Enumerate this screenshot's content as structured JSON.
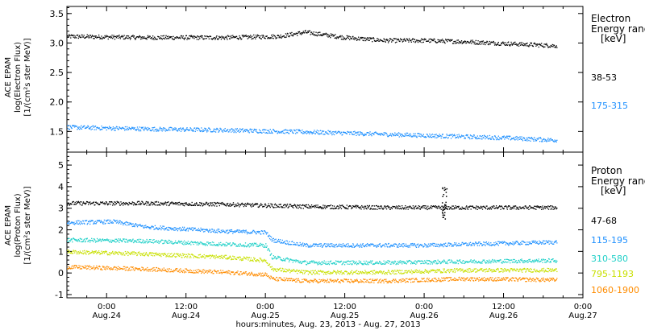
{
  "xaxis": {
    "ticks": [
      {
        "time": "0:00",
        "date": "Aug.24"
      },
      {
        "time": "12:00",
        "date": "Aug.24"
      },
      {
        "time": "0:00",
        "date": "Aug.25"
      },
      {
        "time": "12:00",
        "date": "Aug.25"
      },
      {
        "time": "0:00",
        "date": "Aug.26"
      },
      {
        "time": "12:00",
        "date": "Aug.26"
      },
      {
        "time": "0:00",
        "date": "Aug.27"
      }
    ],
    "label": "hours:minutes, Aug. 23, 2013 - Aug. 27, 2013"
  },
  "chart_data": [
    {
      "type": "scatter",
      "ylabel_lines": [
        "ACE EPAM",
        "log(Electron Flux)",
        "[1/(cm²s ster MeV)]"
      ],
      "legend_title_lines": [
        "Electron",
        "Energy ranges",
        "[keV]"
      ],
      "ylim": [
        1.15,
        3.62
      ],
      "yticks": [
        1.5,
        2.0,
        2.5,
        3.0,
        3.5
      ],
      "xlim": [
        "2013-08-23 18:00",
        "2013-08-27 00:00"
      ],
      "series": [
        {
          "name": "38-53",
          "color": "#000000",
          "anchors": [
            [
              "2013-08-23 18:00",
              3.12
            ],
            [
              "2013-08-24 06:00",
              3.1
            ],
            [
              "2013-08-24 18:00",
              3.1
            ],
            [
              "2013-08-25 02:00",
              3.12
            ],
            [
              "2013-08-25 06:00",
              3.19
            ],
            [
              "2013-08-25 12:00",
              3.1
            ],
            [
              "2013-08-25 18:00",
              3.05
            ],
            [
              "2013-08-26 00:00",
              3.05
            ],
            [
              "2013-08-26 06:00",
              3.03
            ],
            [
              "2013-08-26 12:00",
              3.0
            ],
            [
              "2013-08-26 20:00",
              2.96
            ]
          ]
        },
        {
          "name": "175-315",
          "color": "#1e90ff",
          "anchors": [
            [
              "2013-08-23 18:00",
              1.58
            ],
            [
              "2013-08-24 06:00",
              1.55
            ],
            [
              "2013-08-24 18:00",
              1.53
            ],
            [
              "2013-08-25 06:00",
              1.5
            ],
            [
              "2013-08-25 18:00",
              1.46
            ],
            [
              "2013-08-26 06:00",
              1.42
            ],
            [
              "2013-08-26 12:00",
              1.4
            ],
            [
              "2013-08-26 20:00",
              1.36
            ]
          ]
        }
      ]
    },
    {
      "type": "scatter",
      "ylabel_lines": [
        "ACE EPAM",
        "log(Proton Flux)",
        "[1/(cm²s ster MeV)]"
      ],
      "legend_title_lines": [
        "Proton",
        "Energy ranges",
        "[keV]"
      ],
      "ylim": [
        -1.15,
        5.6
      ],
      "yticks": [
        -1,
        0,
        1,
        2,
        3,
        4,
        5
      ],
      "xlim": [
        "2013-08-23 18:00",
        "2013-08-27 00:00"
      ],
      "series": [
        {
          "name": "47-68",
          "color": "#000000",
          "anchors": [
            [
              "2013-08-23 18:00",
              3.25
            ],
            [
              "2013-08-24 06:00",
              3.25
            ],
            [
              "2013-08-24 18:00",
              3.2
            ],
            [
              "2013-08-25 06:00",
              3.1
            ],
            [
              "2013-08-25 18:00",
              3.05
            ],
            [
              "2013-08-26 00:00",
              3.05
            ],
            [
              "2013-08-26 06:00",
              3.05
            ],
            [
              "2013-08-26 20:00",
              3.05
            ]
          ]
        },
        {
          "name": "115-195",
          "color": "#1e90ff",
          "anchors": [
            [
              "2013-08-23 18:00",
              2.35
            ],
            [
              "2013-08-24 01:00",
              2.4
            ],
            [
              "2013-08-24 06:00",
              2.15
            ],
            [
              "2013-08-24 18:00",
              1.95
            ],
            [
              "2013-08-25 00:00",
              1.9
            ],
            [
              "2013-08-25 01:00",
              1.55
            ],
            [
              "2013-08-25 06:00",
              1.3
            ],
            [
              "2013-08-25 18:00",
              1.3
            ],
            [
              "2013-08-26 00:00",
              1.3
            ],
            [
              "2013-08-26 06:00",
              1.35
            ],
            [
              "2013-08-26 20:00",
              1.45
            ]
          ]
        },
        {
          "name": "310-580",
          "color": "#20d0c8",
          "anchors": [
            [
              "2013-08-23 18:00",
              1.55
            ],
            [
              "2013-08-24 06:00",
              1.5
            ],
            [
              "2013-08-24 18:00",
              1.35
            ],
            [
              "2013-08-25 00:00",
              1.3
            ],
            [
              "2013-08-25 01:00",
              0.75
            ],
            [
              "2013-08-25 06:00",
              0.5
            ],
            [
              "2013-08-25 18:00",
              0.5
            ],
            [
              "2013-08-26 06:00",
              0.55
            ],
            [
              "2013-08-26 20:00",
              0.6
            ]
          ]
        },
        {
          "name": "795-1193",
          "color": "#c8e000",
          "anchors": [
            [
              "2013-08-23 18:00",
              1.0
            ],
            [
              "2013-08-24 06:00",
              0.9
            ],
            [
              "2013-08-24 18:00",
              0.75
            ],
            [
              "2013-08-25 00:00",
              0.6
            ],
            [
              "2013-08-25 01:00",
              0.2
            ],
            [
              "2013-08-25 06:00",
              0.05
            ],
            [
              "2013-08-25 18:00",
              0.05
            ],
            [
              "2013-08-26 06:00",
              0.15
            ],
            [
              "2013-08-26 20:00",
              0.15
            ]
          ]
        },
        {
          "name": "1060-1900",
          "color": "#ff8c00",
          "anchors": [
            [
              "2013-08-23 18:00",
              0.3
            ],
            [
              "2013-08-24 06:00",
              0.2
            ],
            [
              "2013-08-24 18:00",
              0.05
            ],
            [
              "2013-08-25 00:00",
              -0.05
            ],
            [
              "2013-08-25 01:00",
              -0.25
            ],
            [
              "2013-08-25 06:00",
              -0.35
            ],
            [
              "2013-08-25 18:00",
              -0.35
            ],
            [
              "2013-08-26 06:00",
              -0.25
            ],
            [
              "2013-08-26 20:00",
              -0.3
            ]
          ]
        }
      ],
      "spike": {
        "color": "#000000",
        "x": "2013-08-26 03:00",
        "y_range": [
          2.5,
          4.0
        ]
      }
    }
  ]
}
